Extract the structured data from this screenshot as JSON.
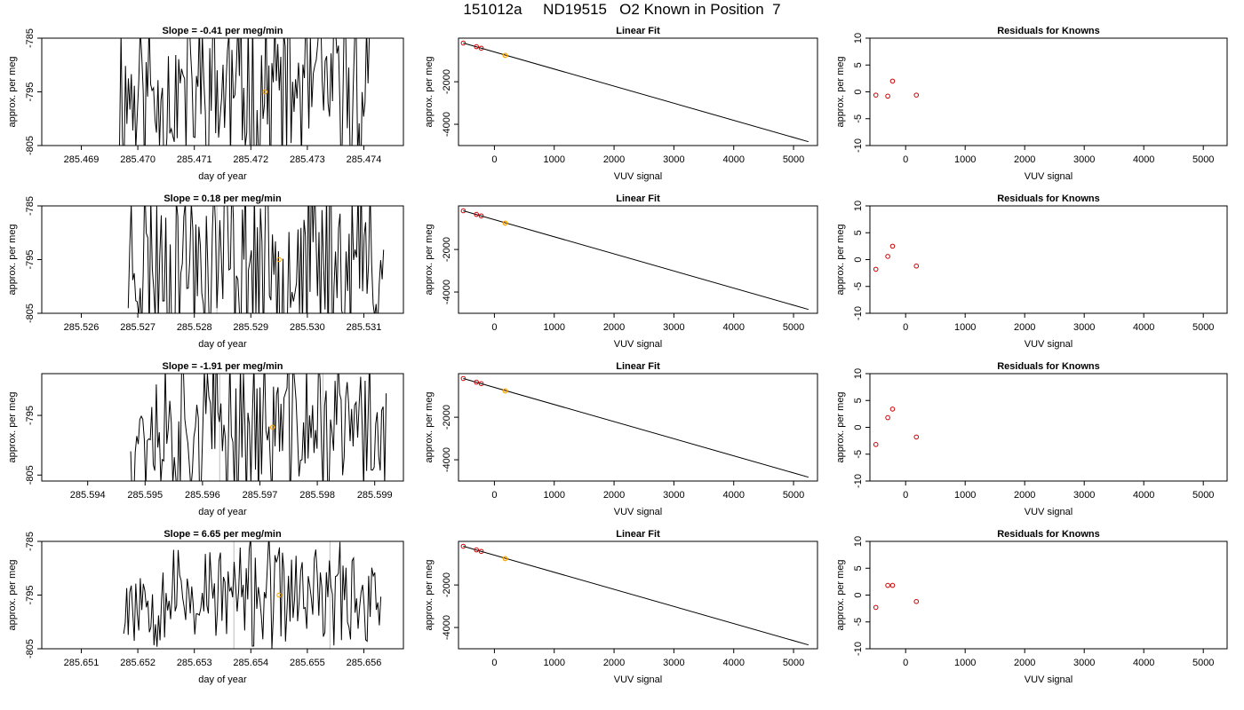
{
  "title": "151012a     ND19515   O2 Known in Position  7",
  "colors": {
    "series_line": "#000000",
    "highlight": "#ffa500",
    "residual_points": "#cd0000",
    "vertical_guides": "#bebebe"
  },
  "rows": [
    {
      "timeseries": {
        "title": "Slope =  -0.41  per meg/min",
        "xlabel": "day of year",
        "ylabel": "approx. per meg",
        "xlim": [
          285.4683,
          285.4747
        ],
        "ylim": [
          -805,
          -785
        ],
        "xticks": [
          "285.469",
          "285.470",
          "285.471",
          "285.472",
          "285.473",
          "285.474"
        ],
        "xtick_values": [
          285.469,
          285.47,
          285.471,
          285.472,
          285.473,
          285.474
        ],
        "yticks": [
          "-805",
          "-795",
          "-785"
        ],
        "ytick_values": [
          -805,
          -795,
          -785
        ],
        "start": 285.46965,
        "end": 285.4741,
        "seed": 11,
        "amplitude": 14,
        "highlight": {
          "x": 285.47225,
          "y": -795
        },
        "vlines": []
      },
      "fit": {
        "title": "Linear Fit",
        "xlabel": "VUV signal",
        "ylabel": "approx. per meg",
        "xlim": [
          -600,
          5400
        ],
        "ylim": [
          -5000,
          50
        ],
        "xticks": [
          "0",
          "1000",
          "2000",
          "3000",
          "4000",
          "5000"
        ],
        "xtick_values": [
          0,
          1000,
          2000,
          3000,
          4000,
          5000
        ],
        "yticks": [
          "-4000",
          "-2000"
        ],
        "ytick_values": [
          -4000,
          -2000
        ],
        "line": {
          "x": [
            -520,
            5250
          ],
          "y": [
            -180,
            -4820
          ]
        },
        "knowns": [
          {
            "x": -520,
            "y": -180
          },
          {
            "x": -300,
            "y": -350
          },
          {
            "x": -220,
            "y": -420
          }
        ],
        "sample": {
          "x": 180,
          "y": -760
        }
      },
      "residuals": {
        "title": "Residuals for Knowns",
        "xlabel": "VUV signal",
        "ylabel": "approx. per meg",
        "xlim": [
          -600,
          5400
        ],
        "ylim": [
          -10,
          10
        ],
        "xticks": [
          "0",
          "1000",
          "2000",
          "3000",
          "4000",
          "5000"
        ],
        "xtick_values": [
          0,
          1000,
          2000,
          3000,
          4000,
          5000
        ],
        "yticks": [
          "-10",
          "-5",
          "0",
          "5",
          "10"
        ],
        "ytick_values": [
          -10,
          -5,
          0,
          5,
          10
        ],
        "points": [
          {
            "x": -500,
            "y": -0.6
          },
          {
            "x": -300,
            "y": -0.8
          },
          {
            "x": -220,
            "y": 2.0
          },
          {
            "x": 180,
            "y": -0.6
          }
        ]
      }
    },
    {
      "timeseries": {
        "title": "Slope =  0.18  per meg/min",
        "xlabel": "day of year",
        "ylabel": "approx. per meg",
        "xlim": [
          285.5253,
          285.5317
        ],
        "ylim": [
          -805,
          -785
        ],
        "xticks": [
          "285.526",
          "285.527",
          "285.528",
          "285.529",
          "285.530",
          "285.531"
        ],
        "xtick_values": [
          285.526,
          285.527,
          285.528,
          285.529,
          285.53,
          285.531
        ],
        "yticks": [
          "-805",
          "-795",
          "-785"
        ],
        "ytick_values": [
          -805,
          -795,
          -785
        ],
        "start": 285.52683,
        "end": 285.53135,
        "seed": 23,
        "amplitude": 14,
        "highlight": {
          "x": 285.5295,
          "y": -795
        },
        "vlines": [
          285.5284,
          285.5304
        ]
      },
      "fit": {
        "title": "Linear Fit",
        "xlabel": "VUV signal",
        "ylabel": "approx. per meg",
        "xlim": [
          -600,
          5400
        ],
        "ylim": [
          -5000,
          50
        ],
        "xticks": [
          "0",
          "1000",
          "2000",
          "3000",
          "4000",
          "5000"
        ],
        "xtick_values": [
          0,
          1000,
          2000,
          3000,
          4000,
          5000
        ],
        "yticks": [
          "-4000",
          "-2000"
        ],
        "ytick_values": [
          -4000,
          -2000
        ],
        "line": {
          "x": [
            -520,
            5250
          ],
          "y": [
            -180,
            -4820
          ]
        },
        "knowns": [
          {
            "x": -520,
            "y": -180
          },
          {
            "x": -300,
            "y": -350
          },
          {
            "x": -220,
            "y": -420
          }
        ],
        "sample": {
          "x": 180,
          "y": -760
        }
      },
      "residuals": {
        "title": "Residuals for Knowns",
        "xlabel": "VUV signal",
        "ylabel": "approx. per meg",
        "xlim": [
          -600,
          5400
        ],
        "ylim": [
          -10,
          10
        ],
        "xticks": [
          "0",
          "1000",
          "2000",
          "3000",
          "4000",
          "5000"
        ],
        "xtick_values": [
          0,
          1000,
          2000,
          3000,
          4000,
          5000
        ],
        "yticks": [
          "-10",
          "-5",
          "0",
          "5",
          "10"
        ],
        "ytick_values": [
          -10,
          -5,
          0,
          5,
          10
        ],
        "points": [
          {
            "x": -500,
            "y": -1.8
          },
          {
            "x": -300,
            "y": 0.6
          },
          {
            "x": -220,
            "y": 2.5
          },
          {
            "x": 180,
            "y": -1.2
          }
        ]
      }
    },
    {
      "timeseries": {
        "title": "Slope =  -1.91  per meg/min",
        "xlabel": "day of year",
        "ylabel": "approx. per meg",
        "xlim": [
          285.5932,
          285.5995
        ],
        "ylim": [
          -806,
          -788
        ],
        "xticks": [
          "285.594",
          "285.595",
          "285.596",
          "285.597",
          "285.598",
          "285.599"
        ],
        "xtick_values": [
          285.594,
          285.595,
          285.596,
          285.597,
          285.598,
          285.599
        ],
        "yticks": [
          "-805",
          "-795"
        ],
        "ytick_values": [
          -805,
          -795
        ],
        "start": 285.59475,
        "end": 285.5992,
        "seed": 37,
        "amplitude": 11,
        "highlight": {
          "x": 285.59722,
          "y": -797
        },
        "vlines": [
          285.5963,
          285.5981
        ]
      },
      "fit": {
        "title": "Linear Fit",
        "xlabel": "VUV signal",
        "ylabel": "approx. per meg",
        "xlim": [
          -600,
          5400
        ],
        "ylim": [
          -5000,
          50
        ],
        "xticks": [
          "0",
          "1000",
          "2000",
          "3000",
          "4000",
          "5000"
        ],
        "xtick_values": [
          0,
          1000,
          2000,
          3000,
          4000,
          5000
        ],
        "yticks": [
          "-4000",
          "-2000"
        ],
        "ytick_values": [
          -4000,
          -2000
        ],
        "line": {
          "x": [
            -520,
            5250
          ],
          "y": [
            -180,
            -4820
          ]
        },
        "knowns": [
          {
            "x": -520,
            "y": -180
          },
          {
            "x": -300,
            "y": -350
          },
          {
            "x": -220,
            "y": -420
          }
        ],
        "sample": {
          "x": 180,
          "y": -760
        }
      },
      "residuals": {
        "title": "Residuals for Knowns",
        "xlabel": "VUV signal",
        "ylabel": "approx. per meg",
        "xlim": [
          -600,
          5400
        ],
        "ylim": [
          -10,
          10
        ],
        "xticks": [
          "0",
          "1000",
          "2000",
          "3000",
          "4000",
          "5000"
        ],
        "xtick_values": [
          0,
          1000,
          2000,
          3000,
          4000,
          5000
        ],
        "yticks": [
          "-10",
          "-5",
          "0",
          "5",
          "10"
        ],
        "ytick_values": [
          -10,
          -5,
          0,
          5,
          10
        ],
        "points": [
          {
            "x": -500,
            "y": -3.2
          },
          {
            "x": -300,
            "y": 1.8
          },
          {
            "x": -220,
            "y": 3.4
          },
          {
            "x": 180,
            "y": -1.8
          }
        ]
      }
    },
    {
      "timeseries": {
        "title": "Slope =  6.65  per meg/min",
        "xlabel": "day of year",
        "ylabel": "approx. per meg",
        "xlim": [
          285.6503,
          285.6567
        ],
        "ylim": [
          -805,
          -785
        ],
        "xticks": [
          "285.651",
          "285.652",
          "285.653",
          "285.654",
          "285.655",
          "285.656"
        ],
        "xtick_values": [
          285.651,
          285.652,
          285.653,
          285.654,
          285.655,
          285.656
        ],
        "yticks": [
          "-805",
          "-795",
          "-785"
        ],
        "ytick_values": [
          -805,
          -795,
          -785
        ],
        "start": 285.65175,
        "end": 285.6563,
        "seed": 53,
        "amplitude": 8,
        "highlight": {
          "x": 285.6545,
          "y": -795
        },
        "vlines": [
          285.6537,
          285.6554
        ]
      },
      "fit": {
        "title": "Linear Fit",
        "xlabel": "VUV signal",
        "ylabel": "approx. per meg",
        "xlim": [
          -600,
          5400
        ],
        "ylim": [
          -5000,
          50
        ],
        "xticks": [
          "0",
          "1000",
          "2000",
          "3000",
          "4000",
          "5000"
        ],
        "xtick_values": [
          0,
          1000,
          2000,
          3000,
          4000,
          5000
        ],
        "yticks": [
          "-4000",
          "-2000"
        ],
        "ytick_values": [
          -4000,
          -2000
        ],
        "line": {
          "x": [
            -520,
            5250
          ],
          "y": [
            -180,
            -4820
          ]
        },
        "knowns": [
          {
            "x": -520,
            "y": -180
          },
          {
            "x": -300,
            "y": -350
          },
          {
            "x": -220,
            "y": -420
          }
        ],
        "sample": {
          "x": 180,
          "y": -760
        }
      },
      "residuals": {
        "title": "Residuals for Knowns",
        "xlabel": "VUV signal",
        "ylabel": "approx. per meg",
        "xlim": [
          -600,
          5400
        ],
        "ylim": [
          -10,
          10
        ],
        "xticks": [
          "0",
          "1000",
          "2000",
          "3000",
          "4000",
          "5000"
        ],
        "xtick_values": [
          0,
          1000,
          2000,
          3000,
          4000,
          5000
        ],
        "yticks": [
          "-10",
          "-5",
          "0",
          "5",
          "10"
        ],
        "ytick_values": [
          -10,
          -5,
          0,
          5,
          10
        ],
        "points": [
          {
            "x": -500,
            "y": -2.3
          },
          {
            "x": -300,
            "y": 1.8
          },
          {
            "x": -220,
            "y": 1.8
          },
          {
            "x": 180,
            "y": -1.2
          }
        ]
      }
    }
  ],
  "chart_data": [
    {
      "type": "line",
      "title": "Slope =  -0.41  per meg/min",
      "xlabel": "day of year",
      "ylabel": "approx. per meg",
      "xlim": [
        285.4683,
        285.4747
      ],
      "ylim": [
        -805,
        -785
      ]
    },
    {
      "type": "scatter",
      "title": "Linear Fit",
      "xlabel": "VUV signal",
      "ylabel": "approx. per meg",
      "x": [
        -520,
        -300,
        -220,
        180
      ],
      "y": [
        -180,
        -350,
        -420,
        -760
      ]
    },
    {
      "type": "scatter",
      "title": "Residuals for Knowns",
      "xlabel": "VUV signal",
      "ylabel": "approx. per meg",
      "x": [
        -500,
        -300,
        -220,
        180
      ],
      "y": [
        -0.6,
        -0.8,
        2.0,
        -0.6
      ]
    },
    {
      "type": "line",
      "title": "Slope =  0.18  per meg/min",
      "xlabel": "day of year",
      "ylabel": "approx. per meg",
      "xlim": [
        285.5253,
        285.5317
      ],
      "ylim": [
        -805,
        -785
      ]
    },
    {
      "type": "scatter",
      "title": "Linear Fit",
      "xlabel": "VUV signal",
      "ylabel": "approx. per meg",
      "x": [
        -520,
        -300,
        -220,
        180
      ],
      "y": [
        -180,
        -350,
        -420,
        -760
      ]
    },
    {
      "type": "scatter",
      "title": "Residuals for Knowns",
      "xlabel": "VUV signal",
      "ylabel": "approx. per meg",
      "x": [
        -500,
        -300,
        -220,
        180
      ],
      "y": [
        -1.8,
        0.6,
        2.5,
        -1.2
      ]
    },
    {
      "type": "line",
      "title": "Slope =  -1.91  per meg/min",
      "xlabel": "day of year",
      "ylabel": "approx. per meg",
      "xlim": [
        285.5932,
        285.5995
      ],
      "ylim": [
        -806,
        -788
      ]
    },
    {
      "type": "scatter",
      "title": "Linear Fit",
      "xlabel": "VUV signal",
      "ylabel": "approx. per meg",
      "x": [
        -520,
        -300,
        -220,
        180
      ],
      "y": [
        -180,
        -350,
        -420,
        -760
      ]
    },
    {
      "type": "scatter",
      "title": "Residuals for Knowns",
      "xlabel": "VUV signal",
      "ylabel": "approx. per meg",
      "x": [
        -500,
        -300,
        -220,
        180
      ],
      "y": [
        -3.2,
        1.8,
        3.4,
        -1.8
      ]
    },
    {
      "type": "line",
      "title": "Slope =  6.65  per meg/min",
      "xlabel": "day of year",
      "ylabel": "approx. per meg",
      "xlim": [
        285.6503,
        285.6567
      ],
      "ylim": [
        -805,
        -785
      ]
    },
    {
      "type": "scatter",
      "title": "Linear Fit",
      "xlabel": "VUV signal",
      "ylabel": "approx. per meg",
      "x": [
        -520,
        -300,
        -220,
        180
      ],
      "y": [
        -180,
        -350,
        -420,
        -760
      ]
    },
    {
      "type": "scatter",
      "title": "Residuals for Knowns",
      "xlabel": "VUV signal",
      "ylabel": "approx. per meg",
      "x": [
        -500,
        -300,
        -220,
        180
      ],
      "y": [
        -2.3,
        1.8,
        1.8,
        -1.2
      ]
    }
  ]
}
